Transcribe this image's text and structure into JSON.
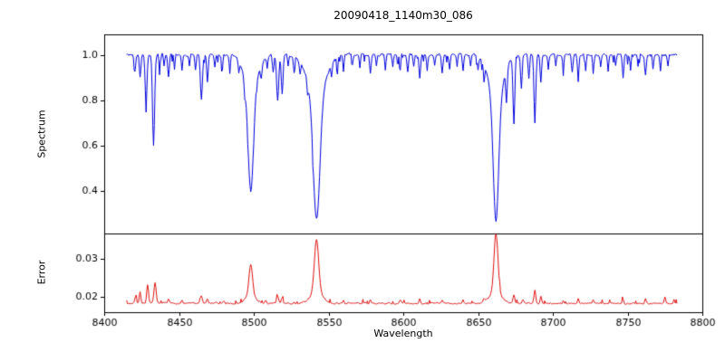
{
  "chart_data": {
    "type": "line",
    "title": "20090418_1140m30_086",
    "xlabel": "Wavelength",
    "main_absorption_lines": [
      8498,
      8542,
      8662
    ],
    "x_axis": {
      "range": [
        8400,
        8800
      ],
      "ticks": [
        8400,
        8450,
        8500,
        8550,
        8600,
        8650,
        8700,
        8750,
        8800
      ]
    },
    "panels": [
      {
        "name": "spectrum",
        "ylabel": "Spectrum",
        "ylim": [
          0.21,
          1.09
        ],
        "yticks": [
          0.4,
          0.6,
          0.8,
          1.0
        ],
        "y_decimals": 1,
        "color": "#0000dd",
        "model": {
          "x_start": 8415,
          "x_end": 8783,
          "step": 0.5,
          "baseline": 1.0,
          "sign": -1,
          "noise_amp": 0.011,
          "spike_prob": 0.12,
          "spike_amp": 0.04,
          "seed": 42,
          "features": [
            [
              8420.5,
              0.07,
              0.5
            ],
            [
              8424,
              0.1,
              0.5
            ],
            [
              8428,
              0.22,
              0.6
            ],
            [
              8433,
              0.4,
              0.7
            ],
            [
              8437,
              0.06,
              0.4
            ],
            [
              8440,
              0.05,
              0.4
            ],
            [
              8443,
              0.1,
              0.5
            ],
            [
              8447,
              0.06,
              0.4
            ],
            [
              8452,
              0.07,
              0.4
            ],
            [
              8457,
              0.05,
              0.4
            ],
            [
              8461,
              0.07,
              0.4
            ],
            [
              8465,
              0.2,
              0.7
            ],
            [
              8469,
              0.12,
              0.5
            ],
            [
              8474,
              0.05,
              0.4
            ],
            [
              8479,
              0.07,
              0.4
            ],
            [
              8484,
              0.08,
              0.4
            ],
            [
              8490,
              0.05,
              0.4
            ],
            [
              8494,
              0.06,
              0.4
            ],
            [
              8498,
              0.45,
              1.8
            ],
            [
              8498,
              0.15,
              4.5
            ],
            [
              8505,
              0.06,
              0.5
            ],
            [
              8509,
              0.05,
              0.4
            ],
            [
              8513,
              0.08,
              0.5
            ],
            [
              8516,
              0.2,
              0.7
            ],
            [
              8519,
              0.17,
              0.6
            ],
            [
              8523,
              0.05,
              0.4
            ],
            [
              8527,
              0.07,
              0.4
            ],
            [
              8531,
              0.05,
              0.4
            ],
            [
              8536,
              0.05,
              0.4
            ],
            [
              8542,
              0.55,
              2.2
            ],
            [
              8542,
              0.18,
              6
            ],
            [
              8552,
              0.05,
              0.4
            ],
            [
              8556,
              0.06,
              0.4
            ],
            [
              8560,
              0.07,
              0.4
            ],
            [
              8566,
              0.05,
              0.4
            ],
            [
              8571,
              0.06,
              0.4
            ],
            [
              8578,
              0.08,
              0.5
            ],
            [
              8582,
              0.05,
              0.4
            ],
            [
              8588,
              0.07,
              0.4
            ],
            [
              8593,
              0.05,
              0.4
            ],
            [
              8598,
              0.07,
              0.4
            ],
            [
              8603,
              0.08,
              0.5
            ],
            [
              8607,
              0.05,
              0.4
            ],
            [
              8611,
              0.1,
              0.5
            ],
            [
              8616,
              0.07,
              0.4
            ],
            [
              8621,
              0.05,
              0.4
            ],
            [
              8626,
              0.08,
              0.5
            ],
            [
              8631,
              0.06,
              0.4
            ],
            [
              8636,
              0.05,
              0.4
            ],
            [
              8640,
              0.07,
              0.4
            ],
            [
              8645,
              0.05,
              0.4
            ],
            [
              8650,
              0.06,
              0.4
            ],
            [
              8654,
              0.07,
              0.4
            ],
            [
              8662,
              0.55,
              1.8
            ],
            [
              8662,
              0.18,
              5
            ],
            [
              8669,
              0.15,
              0.5
            ],
            [
              8674,
              0.3,
              0.6
            ],
            [
              8679,
              0.15,
              0.5
            ],
            [
              8684,
              0.1,
              0.5
            ],
            [
              8688,
              0.3,
              0.6
            ],
            [
              8692,
              0.12,
              0.5
            ],
            [
              8697,
              0.06,
              0.4
            ],
            [
              8702,
              0.05,
              0.4
            ],
            [
              8707,
              0.07,
              0.4
            ],
            [
              8713,
              0.08,
              0.5
            ],
            [
              8717,
              0.1,
              0.5
            ],
            [
              8722,
              0.07,
              0.4
            ],
            [
              8727,
              0.08,
              0.4
            ],
            [
              8732,
              0.06,
              0.4
            ],
            [
              8737,
              0.07,
              0.4
            ],
            [
              8742,
              0.05,
              0.4
            ],
            [
              8747,
              0.1,
              0.5
            ],
            [
              8752,
              0.07,
              0.4
            ],
            [
              8757,
              0.05,
              0.4
            ],
            [
              8762,
              0.09,
              0.5
            ],
            [
              8767,
              0.06,
              0.4
            ],
            [
              8772,
              0.07,
              0.4
            ],
            [
              8777,
              0.05,
              0.4
            ]
          ]
        }
      },
      {
        "name": "error",
        "ylabel": "Error",
        "ylim": [
          0.016,
          0.0365
        ],
        "yticks": [
          0.02,
          0.03
        ],
        "y_decimals": 2,
        "color": "#dd1111",
        "model": {
          "x_start": 8415,
          "x_end": 8783,
          "step": 0.5,
          "baseline": 0.0183,
          "sign": 1,
          "noise_amp": 0.00035,
          "spike_prob": 0.08,
          "spike_amp": 0.001,
          "seed": 7,
          "features": [
            [
              8421,
              0.002,
              0.5
            ],
            [
              8424,
              0.003,
              0.5
            ],
            [
              8429,
              0.005,
              0.6
            ],
            [
              8434,
              0.0055,
              0.7
            ],
            [
              8443,
              0.001,
              0.5
            ],
            [
              8452,
              0.0008,
              0.5
            ],
            [
              8465,
              0.0018,
              0.7
            ],
            [
              8469,
              0.0012,
              0.5
            ],
            [
              8480,
              0.0008,
              0.5
            ],
            [
              8498,
              0.008,
              1.2
            ],
            [
              8498,
              0.002,
              3.5
            ],
            [
              8508,
              0.0008,
              0.5
            ],
            [
              8516,
              0.0018,
              0.7
            ],
            [
              8519,
              0.0015,
              0.6
            ],
            [
              8542,
              0.0135,
              1.4
            ],
            [
              8542,
              0.003,
              4
            ],
            [
              8560,
              0.0008,
              0.5
            ],
            [
              8578,
              0.001,
              0.5
            ],
            [
              8598,
              0.0008,
              0.5
            ],
            [
              8611,
              0.0012,
              0.5
            ],
            [
              8626,
              0.001,
              0.5
            ],
            [
              8640,
              0.0008,
              0.4
            ],
            [
              8654,
              0.001,
              0.5
            ],
            [
              8662,
              0.015,
              1.3
            ],
            [
              8662,
              0.003,
              4
            ],
            [
              8674,
              0.002,
              0.6
            ],
            [
              8680,
              0.001,
              0.5
            ],
            [
              8688,
              0.0035,
              0.6
            ],
            [
              8692,
              0.002,
              0.5
            ],
            [
              8707,
              0.0008,
              0.4
            ],
            [
              8717,
              0.0012,
              0.5
            ],
            [
              8727,
              0.001,
              0.4
            ],
            [
              8747,
              0.0012,
              0.5
            ],
            [
              8762,
              0.0012,
              0.5
            ],
            [
              8775,
              0.0015,
              0.5
            ],
            [
              8781,
              0.001,
              0.4
            ]
          ]
        }
      }
    ]
  }
}
